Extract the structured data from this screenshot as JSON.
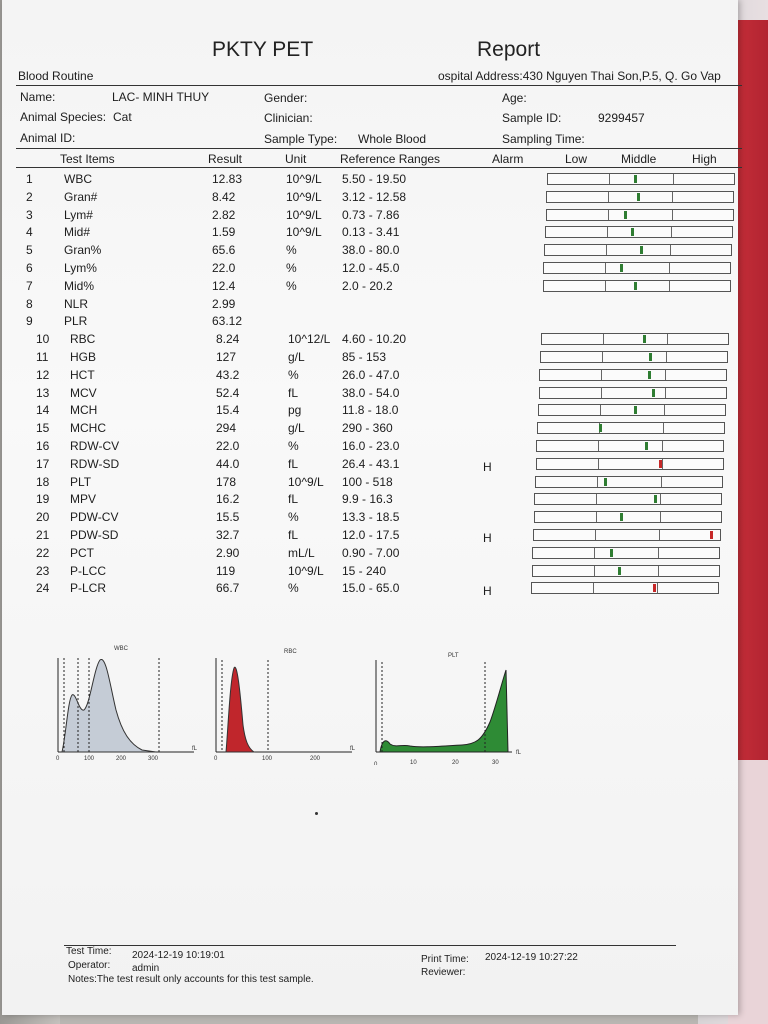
{
  "report": {
    "title": "PKTY PET",
    "title_right": "Report",
    "section": "Blood Routine",
    "hospital_address": "ospital Address:430 Nguyen Thai Son,P.5, Q. Go Vap"
  },
  "patient": {
    "name_label": "Name:",
    "name": "LAC- MINH THUY",
    "gender_label": "Gender:",
    "age_label": "Age:",
    "species_label": "Animal Species:",
    "species": "Cat",
    "clinician_label": "Clinician:",
    "sample_id_label": "Sample ID:",
    "sample_id": "9299457",
    "animal_id_label": "Animal ID:",
    "sample_type_label": "Sample Type:",
    "sample_type": "Whole Blood",
    "sampling_time_label": "Sampling Time:"
  },
  "table_headers": {
    "items": "Test Items",
    "result": "Result",
    "unit": "Unit",
    "ref": "Reference Ranges",
    "alarm": "Alarm",
    "low": "Low",
    "middle": "Middle",
    "high": "High"
  },
  "rows": [
    {
      "no": "1",
      "item": "WBC",
      "result": "12.83",
      "unit": "10^9/L",
      "ref": "5.50 - 19.50",
      "alarm": "",
      "level": 0.48,
      "flag": "normal"
    },
    {
      "no": "2",
      "item": "Gran#",
      "result": "8.42",
      "unit": "10^9/L",
      "ref": "3.12 - 12.58",
      "alarm": "",
      "level": 0.5,
      "flag": "normal"
    },
    {
      "no": "3",
      "item": "Lym#",
      "result": "2.82",
      "unit": "10^9/L",
      "ref": "0.73 - 7.86",
      "alarm": "",
      "level": 0.43,
      "flag": "normal"
    },
    {
      "no": "4",
      "item": "Mid#",
      "result": "1.59",
      "unit": "10^9/L",
      "ref": "0.13 - 3.41",
      "alarm": "",
      "level": 0.47,
      "flag": "normal"
    },
    {
      "no": "5",
      "item": "Gran%",
      "result": "65.6",
      "unit": "%",
      "ref": "38.0 - 80.0",
      "alarm": "",
      "level": 0.53,
      "flag": "normal"
    },
    {
      "no": "6",
      "item": "Lym%",
      "result": "22.0",
      "unit": "%",
      "ref": "12.0 - 45.0",
      "alarm": "",
      "level": 0.42,
      "flag": "normal"
    },
    {
      "no": "7",
      "item": "Mid%",
      "result": "12.4",
      "unit": "%",
      "ref": "2.0 - 20.2",
      "alarm": "",
      "level": 0.5,
      "flag": "normal"
    },
    {
      "no": "8",
      "item": "NLR",
      "result": "2.99",
      "unit": "",
      "ref": "",
      "alarm": "",
      "level": null,
      "flag": "none"
    },
    {
      "no": "9",
      "item": "PLR",
      "result": "63.12",
      "unit": "",
      "ref": "",
      "alarm": "",
      "level": null,
      "flag": "none"
    },
    {
      "no": "10",
      "item": "RBC",
      "result": "8.24",
      "unit": "10^12/L",
      "ref": "4.60 - 10.20",
      "alarm": "",
      "level": 0.56,
      "flag": "normal"
    },
    {
      "no": "11",
      "item": "HGB",
      "result": "127",
      "unit": "g/L",
      "ref": "85 - 153",
      "alarm": "",
      "level": 0.6,
      "flag": "normal"
    },
    {
      "no": "12",
      "item": "HCT",
      "result": "43.2",
      "unit": "%",
      "ref": "26.0 - 47.0",
      "alarm": "",
      "level": 0.6,
      "flag": "normal"
    },
    {
      "no": "13",
      "item": "MCV",
      "result": "52.4",
      "unit": "fL",
      "ref": "38.0 - 54.0",
      "alarm": "",
      "level": 0.62,
      "flag": "normal"
    },
    {
      "no": "14",
      "item": "MCH",
      "result": "15.4",
      "unit": "pg",
      "ref": "11.8 - 18.0",
      "alarm": "",
      "level": 0.53,
      "flag": "normal"
    },
    {
      "no": "15",
      "item": "MCHC",
      "result": "294",
      "unit": "g/L",
      "ref": "290 - 360",
      "alarm": "",
      "level": 0.34,
      "flag": "normal"
    },
    {
      "no": "16",
      "item": "RDW-CV",
      "result": "22.0",
      "unit": "%",
      "ref": "16.0 - 23.0",
      "alarm": "",
      "level": 0.6,
      "flag": "normal"
    },
    {
      "no": "17",
      "item": "RDW-SD",
      "result": "44.0",
      "unit": "fL",
      "ref": "26.4 - 43.1",
      "alarm": "H",
      "level": 0.68,
      "flag": "high"
    },
    {
      "no": "18",
      "item": "PLT",
      "result": "178",
      "unit": "10^9/L",
      "ref": "100 - 518",
      "alarm": "",
      "level": 0.38,
      "flag": "normal"
    },
    {
      "no": "19",
      "item": "MPV",
      "result": "16.2",
      "unit": "fL",
      "ref": "9.9 - 16.3",
      "alarm": "",
      "level": 0.66,
      "flag": "normal"
    },
    {
      "no": "20",
      "item": "PDW-CV",
      "result": "15.5",
      "unit": "%",
      "ref": "13.3 - 18.5",
      "alarm": "",
      "level": 0.47,
      "flag": "normal"
    },
    {
      "no": "21",
      "item": "PDW-SD",
      "result": "32.7",
      "unit": "fL",
      "ref": "12.0 - 17.5",
      "alarm": "H",
      "level": 0.98,
      "flag": "high"
    },
    {
      "no": "22",
      "item": "PCT",
      "result": "2.90",
      "unit": "mL/L",
      "ref": "0.90 - 7.00",
      "alarm": "",
      "level": 0.43,
      "flag": "normal"
    },
    {
      "no": "23",
      "item": "P-LCC",
      "result": "119",
      "unit": "10^9/L",
      "ref": "15 - 240",
      "alarm": "",
      "level": 0.47,
      "flag": "normal"
    },
    {
      "no": "24",
      "item": "P-LCR",
      "result": "66.7",
      "unit": "%",
      "ref": "15.0 - 65.0",
      "alarm": "H",
      "level": 0.67,
      "flag": "high"
    }
  ],
  "histograms": [
    {
      "label": "WBC",
      "ticks": [
        "0",
        "100",
        "200",
        "300"
      ],
      "unit": "fL",
      "color": "#c5ccd6"
    },
    {
      "label": "RBC",
      "ticks": [
        "0",
        "100",
        "200"
      ],
      "unit": "fL",
      "color": "#c0262c"
    },
    {
      "label": "PLT",
      "ticks": [
        "0",
        "10",
        "20",
        "30"
      ],
      "unit": "fL",
      "color": "#2e8b35"
    }
  ],
  "footer": {
    "test_time_label": "Test Time:",
    "test_time": "2024-12-19 10:19:01",
    "operator_label": "Operator:",
    "operator": "admin",
    "print_time_label": "Print Time:",
    "print_time": "2024-12-19 10:27:22",
    "reviewer_label": "Reviewer:",
    "notes": "Notes:The test result only accounts for this test sample."
  },
  "colors": {
    "normal_marker": "#2f7d32",
    "high_marker": "#c62828"
  }
}
